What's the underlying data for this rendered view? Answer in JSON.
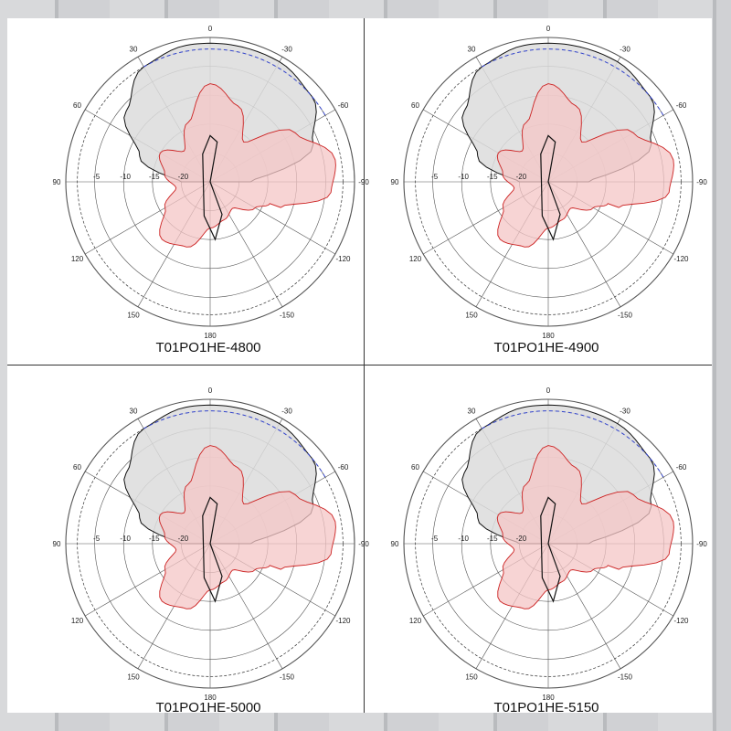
{
  "panels": [
    {
      "caption": "T01PO1HE-4800",
      "chart_data": {
        "type": "polar",
        "angle_tick_labels": [
          "0",
          "-30",
          "-60",
          "-90",
          "-120",
          "-150",
          "180",
          "150",
          "120",
          "90",
          "60",
          "30"
        ],
        "radial_tick_labels": [
          "-5",
          "-10",
          "-15",
          "-20"
        ],
        "series": [
          {
            "angles": [
              -90,
              -70,
              -50,
              -30,
              -10,
              0,
              10,
              30,
              50,
              70,
              90
            ],
            "values": [
              -18,
              -6,
              -2,
              -1,
              -1,
              -1,
              -1,
              -2,
              -6,
              -12,
              -20
            ]
          },
          {
            "angles": [
              -110,
              -95,
              -80,
              -60,
              -40,
              -20,
              0,
              20,
              40,
              60,
              80,
              100,
              120,
              140,
              160,
              180,
              200,
              220,
              240,
              250
            ],
            "values": [
              -12,
              -4,
              -3,
              -8,
              -16,
              -11,
              -8,
              -14,
              -18,
              -15,
              -17,
              -19,
              -16,
              -12,
              -13,
              -17,
              -18,
              -19,
              -16,
              -14
            ]
          }
        ]
      }
    },
    {
      "caption": "T01PO1HE-4900",
      "chart_data": {
        "type": "polar",
        "angle_tick_labels": [
          "0",
          "-30",
          "-60",
          "-90",
          "-120",
          "-150",
          "180",
          "150",
          "120",
          "90",
          "60",
          "30"
        ],
        "radial_tick_labels": [
          "-5",
          "-10",
          "-15",
          "-20"
        ],
        "series": [
          {
            "angles": [
              -90,
              -70,
              -50,
              -30,
              -10,
              0,
              10,
              30,
              50,
              70,
              90
            ],
            "values": [
              -18,
              -6,
              -2,
              -1,
              -1,
              -1,
              -1,
              -2,
              -6,
              -12,
              -20
            ]
          },
          {
            "angles": [
              -110,
              -95,
              -80,
              -60,
              -40,
              -20,
              0,
              20,
              40,
              60,
              80,
              100,
              120,
              140,
              160,
              180,
              200,
              220,
              240,
              250
            ],
            "values": [
              -12,
              -4,
              -3,
              -8,
              -16,
              -11,
              -8,
              -14,
              -18,
              -15,
              -17,
              -19,
              -16,
              -12,
              -13,
              -17,
              -18,
              -19,
              -16,
              -14
            ]
          }
        ]
      }
    },
    {
      "caption": "T01PO1HE-5000",
      "chart_data": {
        "type": "polar",
        "angle_tick_labels": [
          "0",
          "-30",
          "-60",
          "-90",
          "-120",
          "-150",
          "180",
          "150",
          "120",
          "90",
          "60",
          "30"
        ],
        "radial_tick_labels": [
          "-5",
          "-10",
          "-15",
          "-20"
        ],
        "series": [
          {
            "angles": [
              -90,
              -70,
              -50,
              -30,
              -10,
              0,
              10,
              30,
              50,
              70,
              90
            ],
            "values": [
              -18,
              -6,
              -2,
              -1,
              -1,
              -1,
              -1,
              -2,
              -6,
              -12,
              -20
            ]
          },
          {
            "angles": [
              -110,
              -95,
              -80,
              -60,
              -40,
              -20,
              0,
              20,
              40,
              60,
              80,
              100,
              120,
              140,
              160,
              180,
              200,
              220,
              240,
              250
            ],
            "values": [
              -12,
              -4,
              -3,
              -8,
              -16,
              -11,
              -8,
              -14,
              -18,
              -15,
              -17,
              -19,
              -16,
              -12,
              -13,
              -17,
              -18,
              -19,
              -16,
              -14
            ]
          }
        ]
      }
    },
    {
      "caption": "T01PO1HE-5150",
      "chart_data": {
        "type": "polar",
        "angle_tick_labels": [
          "0",
          "-30",
          "-60",
          "-90",
          "-120",
          "-150",
          "180",
          "150",
          "120",
          "90",
          "60",
          "30"
        ],
        "radial_tick_labels": [
          "-5",
          "-10",
          "-15",
          "-20"
        ],
        "series": [
          {
            "angles": [
              -90,
              -70,
              -50,
              -30,
              -10,
              0,
              10,
              30,
              50,
              70,
              90
            ],
            "values": [
              -18,
              -6,
              -2,
              -1,
              -1,
              -1,
              -1,
              -2,
              -6,
              -12,
              -20
            ]
          },
          {
            "angles": [
              -110,
              -95,
              -80,
              -60,
              -40,
              -20,
              0,
              20,
              40,
              60,
              80,
              100,
              120,
              140,
              160,
              180,
              200,
              220,
              240,
              250
            ],
            "values": [
              -12,
              -4,
              -3,
              -8,
              -16,
              -11,
              -8,
              -14,
              -18,
              -15,
              -17,
              -19,
              -16,
              -12,
              -13,
              -17,
              -18,
              -19,
              -16,
              -14
            ]
          }
        ]
      }
    }
  ],
  "colors": {
    "grid": "#555555",
    "series_0_fill": "#dcdcdc",
    "series_0_stroke": "#111111",
    "series_1_fill": "#f4c6c6",
    "series_1_stroke": "#cc2222",
    "dashed_blue": "#3344cc"
  }
}
